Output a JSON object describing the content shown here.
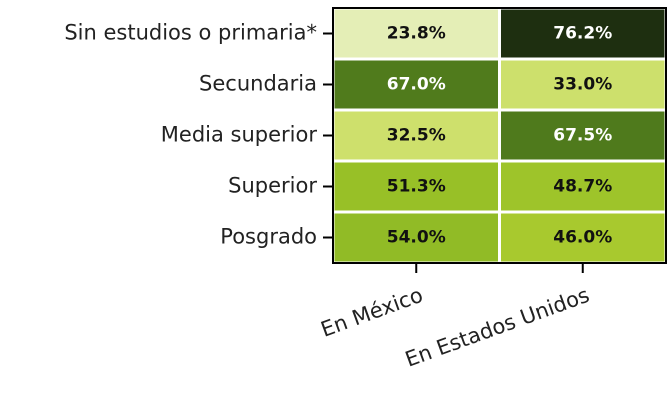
{
  "chart_data": {
    "type": "heatmap",
    "x": [
      "En México",
      "En Estados Unidos"
    ],
    "y": [
      "Sin estudios o primaria*",
      "Secundaria",
      "Media superior",
      "Superior",
      "Posgrado"
    ],
    "values": [
      [
        23.8,
        76.2
      ],
      [
        67.0,
        33.0
      ],
      [
        32.5,
        67.5
      ],
      [
        51.3,
        48.7
      ],
      [
        54.0,
        46.0
      ]
    ],
    "value_labels": [
      [
        "23.8%",
        "76.2%"
      ],
      [
        "67.0%",
        "33.0%"
      ],
      [
        "32.5%",
        "67.5%"
      ],
      [
        "51.3%",
        "48.7%"
      ],
      [
        "54.0%",
        "46.0%"
      ]
    ],
    "colors": [
      [
        "#e4eeb6",
        "#1e2f10"
      ],
      [
        "#507b1c",
        "#cde06c"
      ],
      [
        "#cee06c",
        "#4f7a1c"
      ],
      [
        "#98c027",
        "#9ec42a"
      ],
      [
        "#91bb26",
        "#a8c92e"
      ]
    ]
  }
}
